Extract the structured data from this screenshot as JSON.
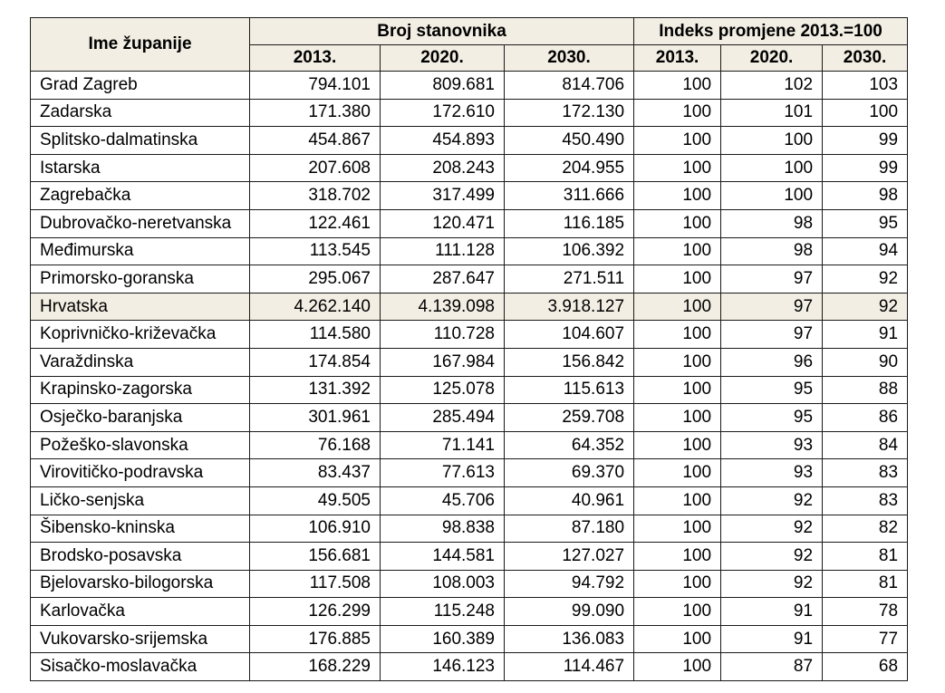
{
  "header": {
    "name_col": "Ime županije",
    "population_group": "Broj stanovnika",
    "index_group": "Indeks promjene 2013.=100",
    "years": [
      "2013.",
      "2020.",
      "2030."
    ]
  },
  "rows": [
    {
      "name": "Grad Zagreb",
      "p2013": "794.101",
      "p2020": "809.681",
      "p2030": "814.706",
      "i2013": "100",
      "i2020": "102",
      "i2030": "103",
      "highlight": false
    },
    {
      "name": "Zadarska",
      "p2013": "171.380",
      "p2020": "172.610",
      "p2030": "172.130",
      "i2013": "100",
      "i2020": "101",
      "i2030": "100",
      "highlight": false
    },
    {
      "name": "Splitsko-dalmatinska",
      "p2013": "454.867",
      "p2020": "454.893",
      "p2030": "450.490",
      "i2013": "100",
      "i2020": "100",
      "i2030": "99",
      "highlight": false
    },
    {
      "name": "Istarska",
      "p2013": "207.608",
      "p2020": "208.243",
      "p2030": "204.955",
      "i2013": "100",
      "i2020": "100",
      "i2030": "99",
      "highlight": false
    },
    {
      "name": "Zagrebačka",
      "p2013": "318.702",
      "p2020": "317.499",
      "p2030": "311.666",
      "i2013": "100",
      "i2020": "100",
      "i2030": "98",
      "highlight": false
    },
    {
      "name": "Dubrovačko-neretvanska",
      "p2013": "122.461",
      "p2020": "120.471",
      "p2030": "116.185",
      "i2013": "100",
      "i2020": "98",
      "i2030": "95",
      "highlight": false
    },
    {
      "name": "Međimurska",
      "p2013": "113.545",
      "p2020": "111.128",
      "p2030": "106.392",
      "i2013": "100",
      "i2020": "98",
      "i2030": "94",
      "highlight": false
    },
    {
      "name": "Primorsko-goranska",
      "p2013": "295.067",
      "p2020": "287.647",
      "p2030": "271.511",
      "i2013": "100",
      "i2020": "97",
      "i2030": "92",
      "highlight": false
    },
    {
      "name": "Hrvatska",
      "p2013": "4.262.140",
      "p2020": "4.139.098",
      "p2030": "3.918.127",
      "i2013": "100",
      "i2020": "97",
      "i2030": "92",
      "highlight": true
    },
    {
      "name": "Koprivničko-križevačka",
      "p2013": "114.580",
      "p2020": "110.728",
      "p2030": "104.607",
      "i2013": "100",
      "i2020": "97",
      "i2030": "91",
      "highlight": false
    },
    {
      "name": "Varaždinska",
      "p2013": "174.854",
      "p2020": "167.984",
      "p2030": "156.842",
      "i2013": "100",
      "i2020": "96",
      "i2030": "90",
      "highlight": false
    },
    {
      "name": "Krapinsko-zagorska",
      "p2013": "131.392",
      "p2020": "125.078",
      "p2030": "115.613",
      "i2013": "100",
      "i2020": "95",
      "i2030": "88",
      "highlight": false
    },
    {
      "name": "Osječko-baranjska",
      "p2013": "301.961",
      "p2020": "285.494",
      "p2030": "259.708",
      "i2013": "100",
      "i2020": "95",
      "i2030": "86",
      "highlight": false
    },
    {
      "name": "Požeško-slavonska",
      "p2013": "76.168",
      "p2020": "71.141",
      "p2030": "64.352",
      "i2013": "100",
      "i2020": "93",
      "i2030": "84",
      "highlight": false
    },
    {
      "name": "Virovitičko-podravska",
      "p2013": "83.437",
      "p2020": "77.613",
      "p2030": "69.370",
      "i2013": "100",
      "i2020": "93",
      "i2030": "83",
      "highlight": false
    },
    {
      "name": "Ličko-senjska",
      "p2013": "49.505",
      "p2020": "45.706",
      "p2030": "40.961",
      "i2013": "100",
      "i2020": "92",
      "i2030": "83",
      "highlight": false
    },
    {
      "name": "Šibensko-kninska",
      "p2013": "106.910",
      "p2020": "98.838",
      "p2030": "87.180",
      "i2013": "100",
      "i2020": "92",
      "i2030": "82",
      "highlight": false
    },
    {
      "name": "Brodsko-posavska",
      "p2013": "156.681",
      "p2020": "144.581",
      "p2030": "127.027",
      "i2013": "100",
      "i2020": "92",
      "i2030": "81",
      "highlight": false
    },
    {
      "name": "Bjelovarsko-bilogorska",
      "p2013": "117.508",
      "p2020": "108.003",
      "p2030": "94.792",
      "i2013": "100",
      "i2020": "92",
      "i2030": "81",
      "highlight": false
    },
    {
      "name": "Karlovačka",
      "p2013": "126.299",
      "p2020": "115.248",
      "p2030": "99.090",
      "i2013": "100",
      "i2020": "91",
      "i2030": "78",
      "highlight": false
    },
    {
      "name": "Vukovarsko-srijemska",
      "p2013": "176.885",
      "p2020": "160.389",
      "p2030": "136.083",
      "i2013": "100",
      "i2020": "91",
      "i2030": "77",
      "highlight": false
    },
    {
      "name": "Sisačko-moslavačka",
      "p2013": "168.229",
      "p2020": "146.123",
      "p2030": "114.467",
      "i2013": "100",
      "i2020": "87",
      "i2030": "68",
      "highlight": false
    }
  ],
  "colors": {
    "header_bg": "#f2eee3",
    "highlight_bg": "#f2eee3",
    "border": "#1a1a1a"
  }
}
